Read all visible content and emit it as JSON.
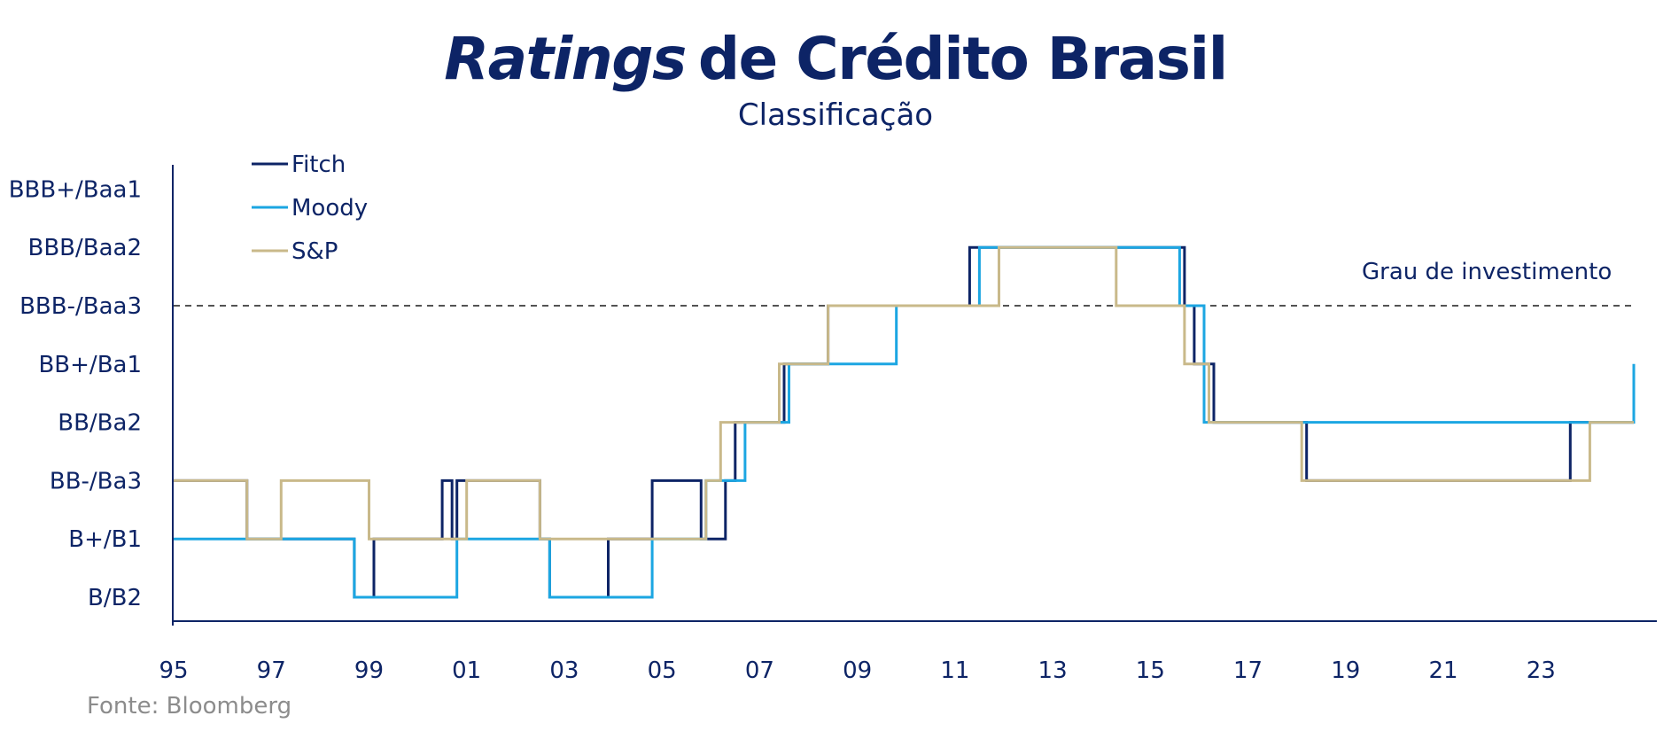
{
  "chart_data": {
    "type": "line",
    "title_italic": "Ratings",
    "title_rest": "de Crédito Brasil",
    "subtitle": "Classificação",
    "source": "Fonte: Bloomberg",
    "y_categories": [
      "B/B2",
      "B+/B1",
      "BB-/Ba3",
      "BB/Ba2",
      "BB+/Ba1",
      "BBB-/Baa3",
      "BBB/Baa2",
      "BBB+/Baa1"
    ],
    "x_tick_labels": [
      "95",
      "97",
      "99",
      "01",
      "03",
      "05",
      "07",
      "09",
      "11",
      "13",
      "15",
      "17",
      "19",
      "21",
      "23"
    ],
    "x_ticks": [
      1995,
      1997,
      1999,
      2001,
      2003,
      2005,
      2007,
      2009,
      2011,
      2013,
      2015,
      2017,
      2019,
      2021,
      2023
    ],
    "xlim": [
      1995,
      2024.9
    ],
    "threshold": {
      "level": 5,
      "label": "Grau de investimento"
    },
    "legend": {
      "position": "top-left"
    },
    "series": [
      {
        "name": "Fitch",
        "color": "#0d2466",
        "steps": [
          [
            1995.0,
            2
          ],
          [
            1996.5,
            1
          ],
          [
            1998.7,
            0
          ],
          [
            1999.1,
            1
          ],
          [
            2000.3,
            1
          ],
          [
            2000.5,
            2
          ],
          [
            2000.7,
            1
          ],
          [
            2000.8,
            2
          ],
          [
            2002.5,
            1
          ],
          [
            2002.7,
            0
          ],
          [
            2003.9,
            1
          ],
          [
            2004.8,
            2
          ],
          [
            2005.8,
            1
          ],
          [
            2006.3,
            2
          ],
          [
            2006.5,
            3
          ],
          [
            2007.5,
            4
          ],
          [
            2008.4,
            5
          ],
          [
            2011.3,
            6
          ],
          [
            2015.7,
            5
          ],
          [
            2015.9,
            4
          ],
          [
            2016.3,
            3
          ],
          [
            2018.2,
            2
          ],
          [
            2023.6,
            3
          ],
          [
            2024.9,
            3
          ]
        ]
      },
      {
        "name": "Moody",
        "color": "#1ca6e2",
        "steps": [
          [
            1995.0,
            1
          ],
          [
            1998.7,
            0
          ],
          [
            2000.8,
            1
          ],
          [
            2002.7,
            0
          ],
          [
            2004.8,
            1
          ],
          [
            2005.9,
            2
          ],
          [
            2006.7,
            3
          ],
          [
            2007.6,
            4
          ],
          [
            2009.8,
            5
          ],
          [
            2011.5,
            6
          ],
          [
            2015.6,
            5
          ],
          [
            2016.1,
            3
          ],
          [
            2024.9,
            4
          ]
        ]
      },
      {
        "name": "S&P",
        "color": "#c9b98a",
        "steps": [
          [
            1995.0,
            2
          ],
          [
            1996.5,
            1
          ],
          [
            1997.2,
            2
          ],
          [
            1999.0,
            1
          ],
          [
            2001.0,
            2
          ],
          [
            2002.5,
            1
          ],
          [
            2005.9,
            2
          ],
          [
            2006.2,
            3
          ],
          [
            2007.4,
            4
          ],
          [
            2008.4,
            5
          ],
          [
            2011.9,
            6
          ],
          [
            2014.3,
            5
          ],
          [
            2015.7,
            4
          ],
          [
            2016.2,
            3
          ],
          [
            2018.1,
            2
          ],
          [
            2024.0,
            3
          ],
          [
            2024.9,
            3
          ]
        ]
      }
    ]
  }
}
